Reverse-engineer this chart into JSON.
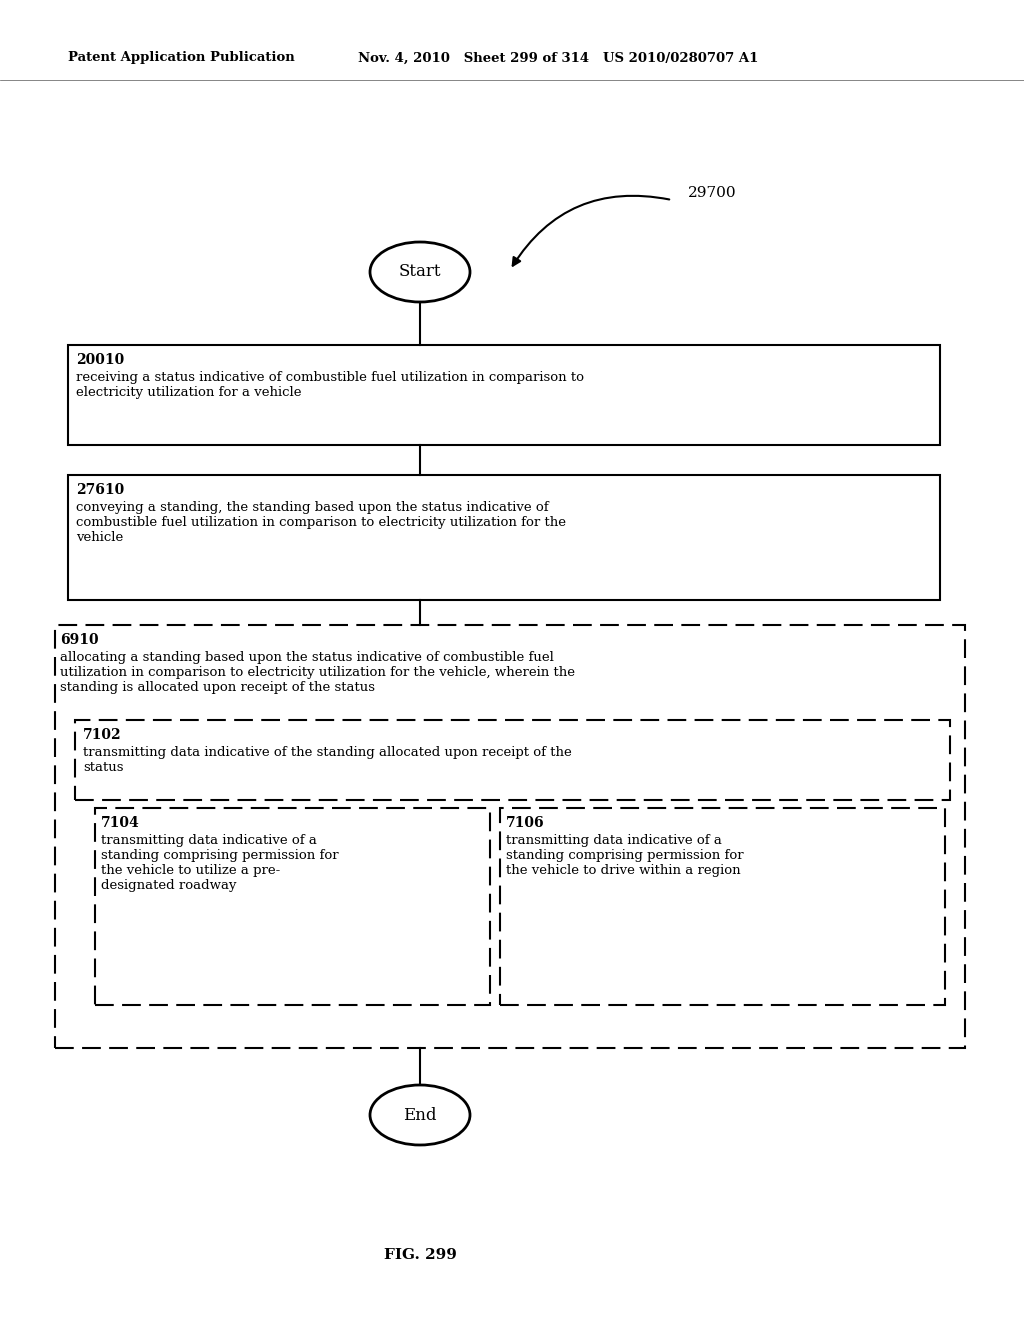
{
  "header_left": "Patent Application Publication",
  "header_mid": "Nov. 4, 2010   Sheet 299 of 314   US 2010/0280707 A1",
  "fig_label": "FIG. 299",
  "diagram_label": "29700",
  "start_label": "Start",
  "end_label": "End",
  "box1_id": "20010",
  "box1_text": "receiving a status indicative of combustible fuel utilization in comparison to\nelectricity utilization for a vehicle",
  "box2_id": "27610",
  "box2_text": "conveying a standing, the standing based upon the status indicative of\ncombustible fuel utilization in comparison to electricity utilization for the\nvehicle",
  "outer_dash_id": "6910",
  "outer_dash_text": "allocating a standing based upon the status indicative of combustible fuel\nutilization in comparison to electricity utilization for the vehicle, wherein the\nstanding is allocated upon receipt of the status",
  "mid_dash_id": "7102",
  "mid_dash_text": "transmitting data indicative of the standing allocated upon receipt of the\nstatus",
  "left_dash_id": "7104",
  "left_dash_text": "transmitting data indicative of a\nstanding comprising permission for\nthe vehicle to utilize a pre-\ndesignated roadway",
  "right_dash_id": "7106",
  "right_dash_text": "transmitting data indicative of a\nstanding comprising permission for\nthe vehicle to drive within a region",
  "bg_color": "#ffffff",
  "text_color": "#000000",
  "line_color": "#000000"
}
